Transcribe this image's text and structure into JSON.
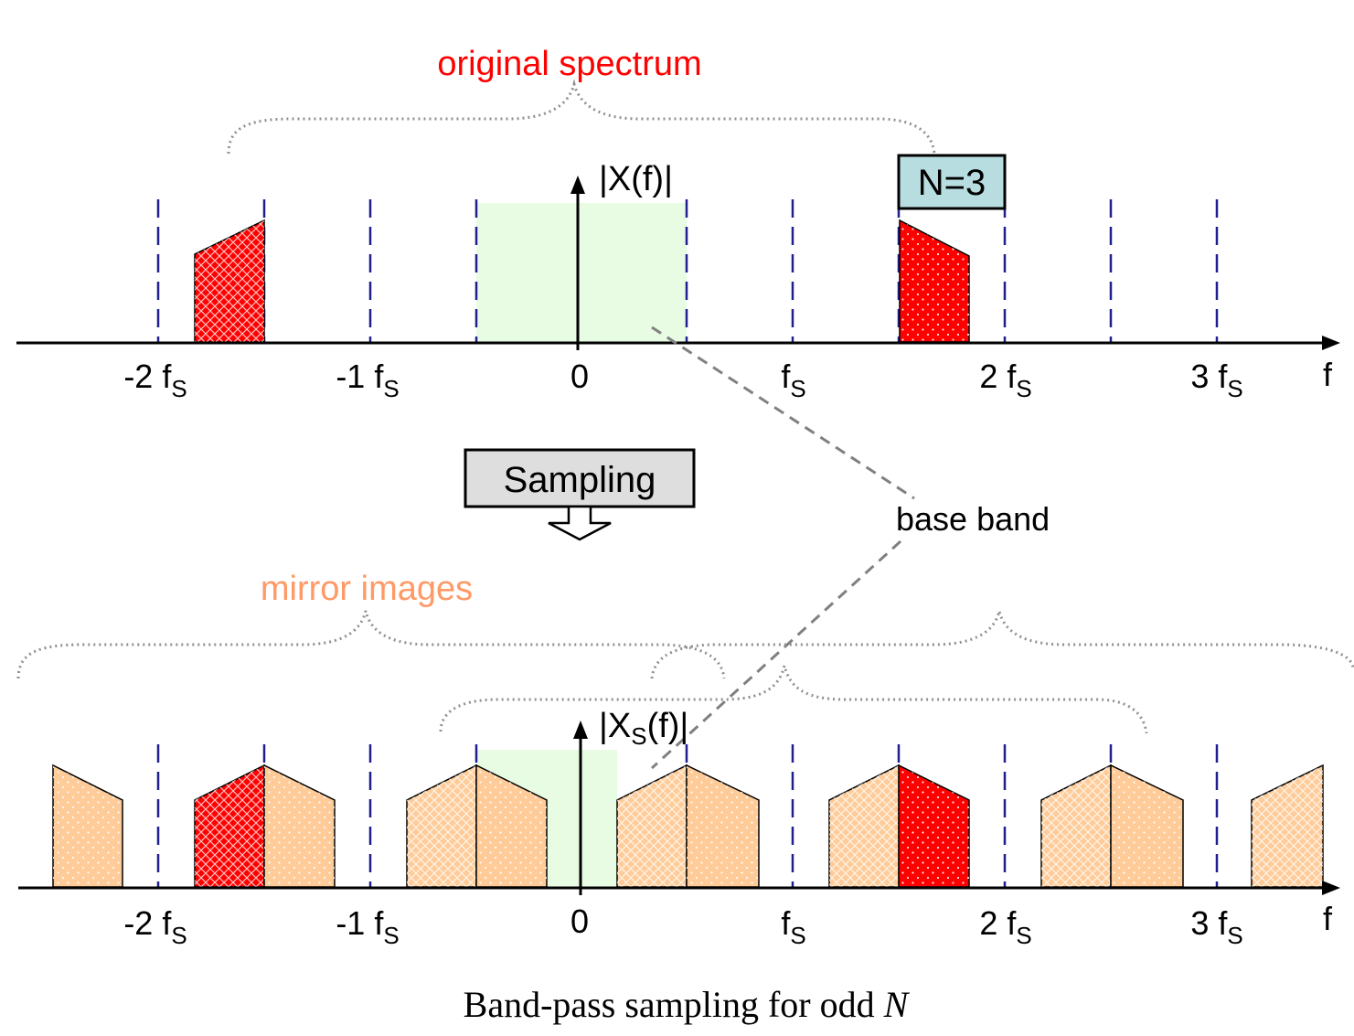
{
  "colors": {
    "axis": "#000000",
    "dash": "#1f1f8f",
    "red": "#ff0000",
    "orange": "#ffcc99",
    "green": "#e8fbe3",
    "nbox_fill": "#b8dde0",
    "brace": "#909090",
    "orig_label": "#ff0000",
    "mirror_label": "#ff9966"
  },
  "labels": {
    "original_spectrum": "original spectrum",
    "mirror_images": "mirror images",
    "base_band": "base band",
    "sampling_button": "Sampling",
    "n_box": "N=3",
    "top_magnitude": "|X(f)|",
    "bottom_mag_pre": "|X",
    "bottom_mag_sub": "S",
    "bottom_mag_post": "(f)|",
    "f_axis": "f",
    "caption_text": "Band-pass sampling for odd ",
    "caption_var": "N"
  },
  "ticks": [
    {
      "num": "-2 f",
      "sub": "S"
    },
    {
      "num": "-1 f",
      "sub": "S"
    },
    {
      "num": "0",
      "sub": ""
    },
    {
      "num": "f",
      "sub": "S"
    },
    {
      "num": "2 f",
      "sub": "S"
    },
    {
      "num": "3 f",
      "sub": "S"
    }
  ]
}
